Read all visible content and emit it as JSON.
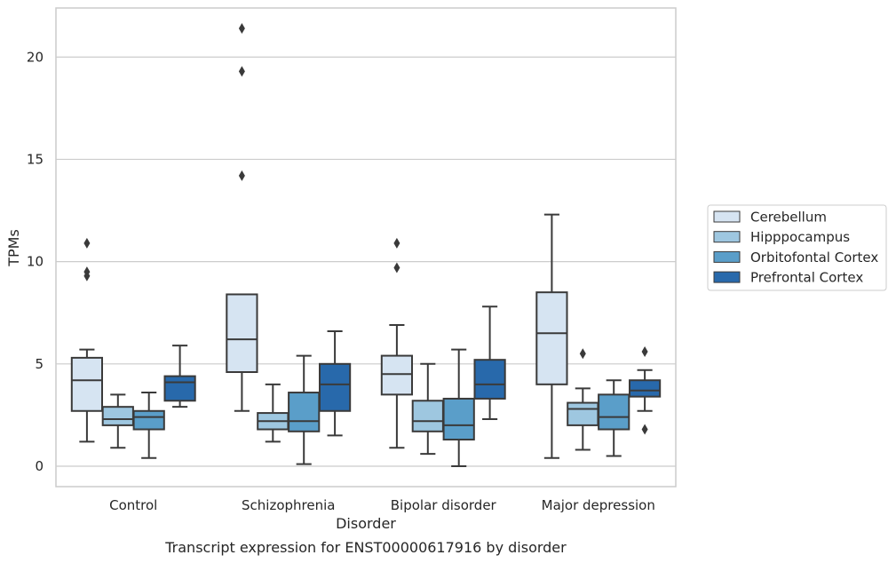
{
  "chart_data": {
    "type": "box",
    "title": "",
    "caption": "Transcript expression for ENST00000617916 by disorder",
    "xlabel": "Disorder",
    "ylabel": "TPMs",
    "ylim": [
      -1,
      22.4
    ],
    "yticks": [
      0,
      5,
      10,
      15,
      20
    ],
    "categories": [
      "Control",
      "Schizophrenia",
      "Bipolar disorder",
      "Major depression"
    ],
    "grid": true,
    "legend_position": "right",
    "series": [
      {
        "name": "Cerebellum",
        "color": "#d6e4f2",
        "boxes": [
          {
            "whislo": 1.2,
            "q1": 2.7,
            "med": 4.2,
            "q3": 5.3,
            "whishi": 5.7,
            "fliers": [
              10.9,
              9.5,
              9.3
            ]
          },
          {
            "whislo": 2.7,
            "q1": 4.6,
            "med": 6.2,
            "q3": 8.4,
            "whishi": 8.4,
            "fliers": [
              21.4,
              19.3,
              14.2
            ]
          },
          {
            "whislo": 0.9,
            "q1": 3.5,
            "med": 4.5,
            "q3": 5.4,
            "whishi": 6.9,
            "fliers": [
              10.9,
              9.7
            ]
          },
          {
            "whislo": 0.4,
            "q1": 4.0,
            "med": 6.5,
            "q3": 8.5,
            "whishi": 12.3,
            "fliers": []
          }
        ]
      },
      {
        "name": "Hipppocampus",
        "color": "#9ec7e0",
        "boxes": [
          {
            "whislo": 0.9,
            "q1": 2.0,
            "med": 2.3,
            "q3": 2.9,
            "whishi": 3.5,
            "fliers": []
          },
          {
            "whislo": 1.2,
            "q1": 1.8,
            "med": 2.2,
            "q3": 2.6,
            "whishi": 4.0,
            "fliers": []
          },
          {
            "whislo": 0.6,
            "q1": 1.7,
            "med": 2.2,
            "q3": 3.2,
            "whishi": 5.0,
            "fliers": []
          },
          {
            "whislo": 0.8,
            "q1": 2.0,
            "med": 2.8,
            "q3": 3.1,
            "whishi": 3.8,
            "fliers": [
              5.5
            ]
          }
        ]
      },
      {
        "name": "Orbitofontal Cortex",
        "color": "#5a9ec9",
        "boxes": [
          {
            "whislo": 0.4,
            "q1": 1.8,
            "med": 2.4,
            "q3": 2.7,
            "whishi": 3.6,
            "fliers": []
          },
          {
            "whislo": 0.1,
            "q1": 1.7,
            "med": 2.2,
            "q3": 3.6,
            "whishi": 5.4,
            "fliers": []
          },
          {
            "whislo": 0.0,
            "q1": 1.3,
            "med": 2.0,
            "q3": 3.3,
            "whishi": 5.7,
            "fliers": []
          },
          {
            "whislo": 0.5,
            "q1": 1.8,
            "med": 2.4,
            "q3": 3.5,
            "whishi": 4.2,
            "fliers": []
          }
        ]
      },
      {
        "name": "Prefrontal Cortex",
        "color": "#2869ab",
        "boxes": [
          {
            "whislo": 2.9,
            "q1": 3.2,
            "med": 4.1,
            "q3": 4.4,
            "whishi": 5.9,
            "fliers": []
          },
          {
            "whislo": 1.5,
            "q1": 2.7,
            "med": 4.0,
            "q3": 5.0,
            "whishi": 6.6,
            "fliers": []
          },
          {
            "whislo": 2.3,
            "q1": 3.3,
            "med": 4.0,
            "q3": 5.2,
            "whishi": 7.8,
            "fliers": []
          },
          {
            "whislo": 2.7,
            "q1": 3.4,
            "med": 3.7,
            "q3": 4.2,
            "whishi": 4.7,
            "fliers": [
              5.6,
              1.8
            ]
          }
        ]
      }
    ]
  }
}
